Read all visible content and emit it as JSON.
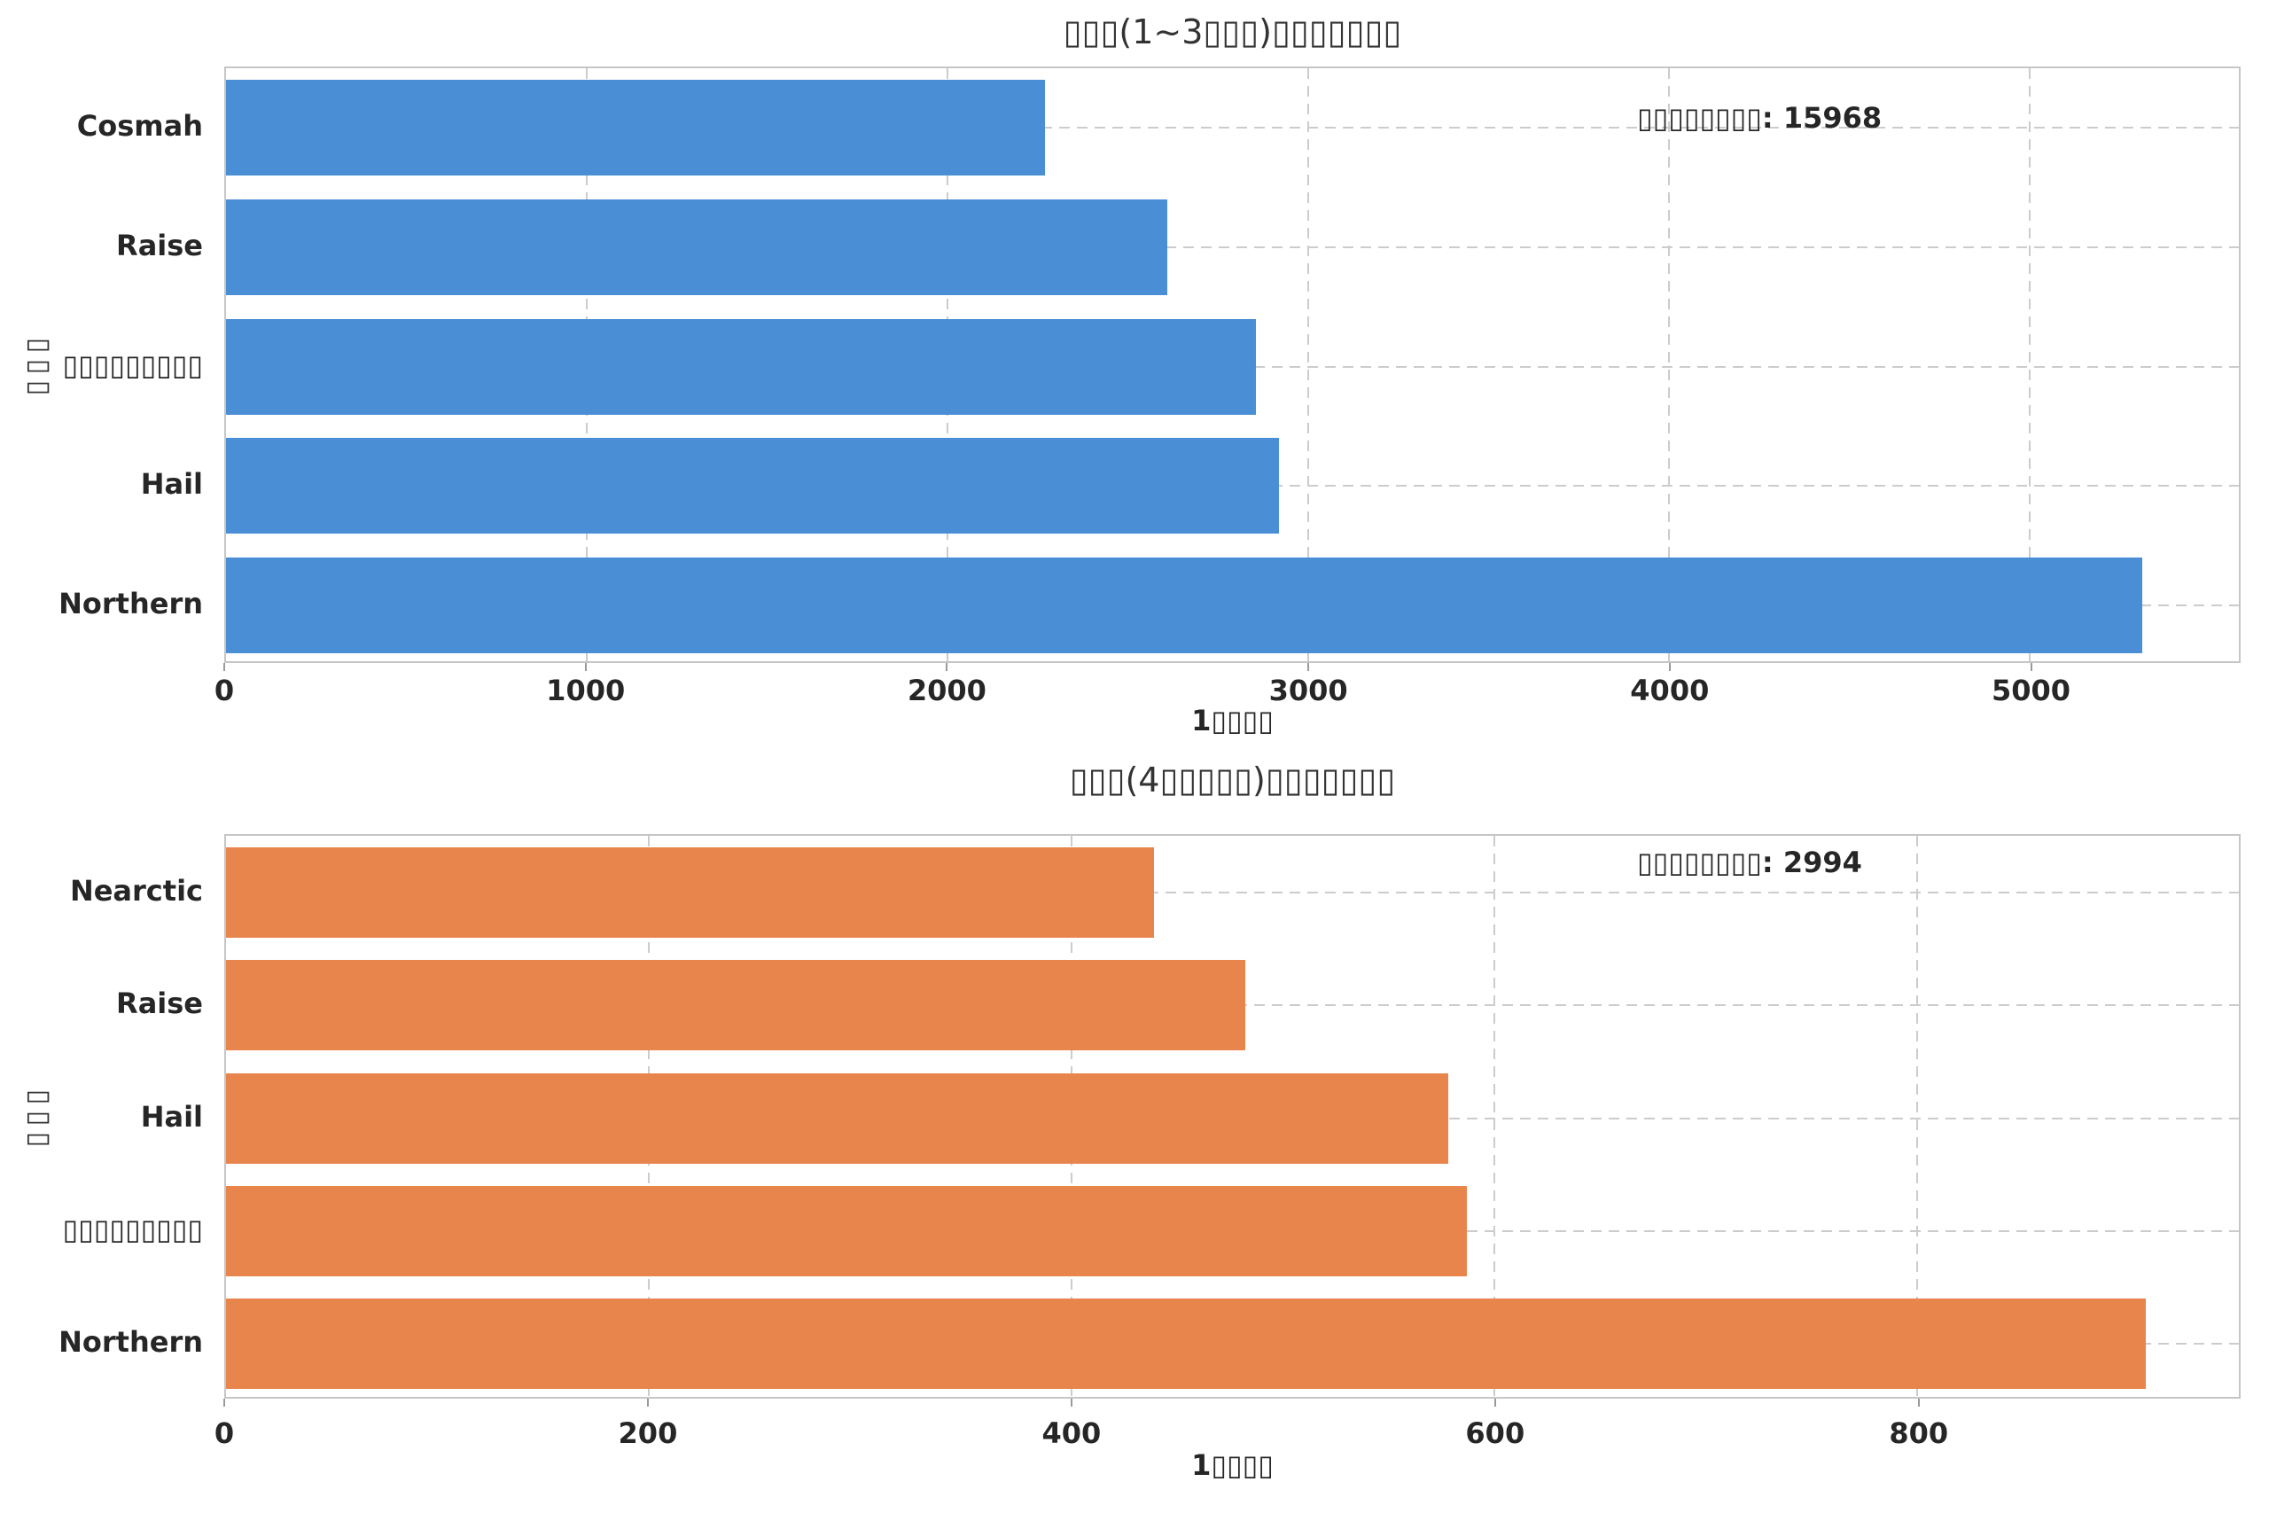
{
  "figure": {
    "background": "#ffffff",
    "note_render": "CJK glyphs shown as tofu boxes in source image"
  },
  "colors": {
    "bar_blue": "#4A8ED5",
    "bar_orange": "#E8854D",
    "grid": "#cccccc",
    "spine": "#c6c6c6",
    "text": "#262626"
  },
  "chart_data": [
    {
      "type": "bar",
      "orientation": "horizontal",
      "title": "▯▯▯(1~3▯▯▯)▯▯▯▯▯▯▯",
      "xlabel": "1▯▯▯▯",
      "ylabel": "▭\n▭\n▭",
      "annotation": "▯▯▯▯▯▯▯▯: 15968",
      "total": 15968,
      "categories": [
        "Cosmah",
        "Raise",
        "▯▯▯▯▯▯▯▯▯",
        "Hail",
        "Northern"
      ],
      "values": [
        2270,
        2610,
        2855,
        2920,
        5313
      ],
      "xticks": [
        0,
        1000,
        2000,
        3000,
        4000,
        5000
      ],
      "xlim": [
        0,
        5580
      ],
      "bar_color": "#4A8ED5",
      "grid": true,
      "legend": "none"
    },
    {
      "type": "bar",
      "orientation": "horizontal",
      "title": "▯▯▯(4▯▯▯▯▯)▯▯▯▯▯▯▯",
      "xlabel": "1▯▯▯▯",
      "ylabel": "▭\n▭\n▭",
      "annotation": "▯▯▯▯▯▯▯▯: 2994",
      "total": 2994,
      "categories": [
        "Nearctic",
        "Raise",
        "Hail",
        "▯▯▯▯▯▯▯▯▯",
        "Northern"
      ],
      "values": [
        439,
        482,
        578,
        587,
        908
      ],
      "xticks": [
        0,
        200,
        400,
        600,
        800
      ],
      "xlim": [
        0,
        952
      ],
      "bar_color": "#E8854D",
      "grid": true,
      "legend": "none"
    }
  ]
}
